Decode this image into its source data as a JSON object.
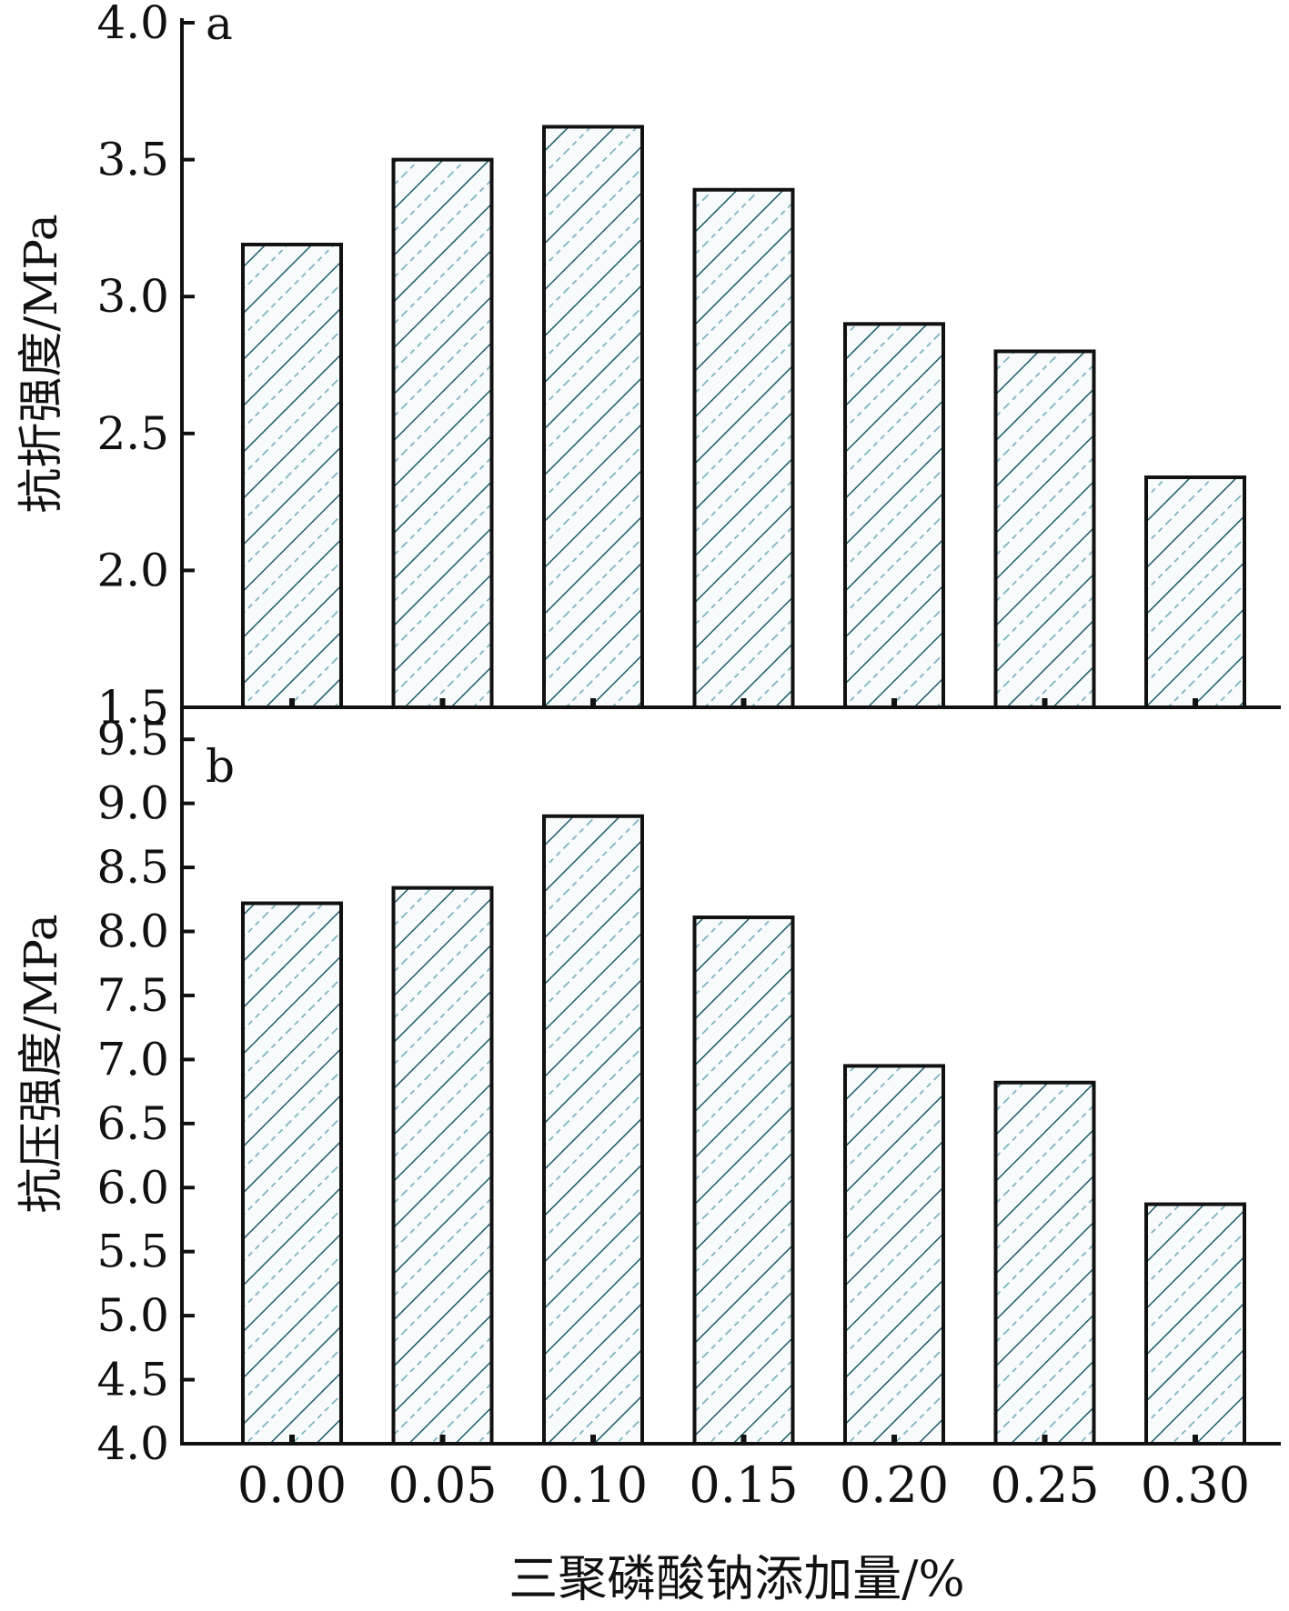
{
  "chart_data": [
    {
      "type": "bar",
      "panel_label": "a",
      "ylabel": "抗折强度/MPa",
      "ylim": [
        1.5,
        4.0
      ],
      "yticks": [
        "1.5",
        "2.0",
        "2.5",
        "3.0",
        "3.5",
        "4.0"
      ],
      "categories": [
        "0.00",
        "0.05",
        "0.10",
        "0.15",
        "0.20",
        "0.25",
        "0.30"
      ],
      "values": [
        3.19,
        3.5,
        3.62,
        3.39,
        2.9,
        2.8,
        2.34
      ]
    },
    {
      "type": "bar",
      "panel_label": "b",
      "ylabel": "抗压强度/MPa",
      "ylim": [
        4.0,
        9.75
      ],
      "yticks": [
        "4.0",
        "4.5",
        "5.0",
        "5.5",
        "6.0",
        "6.5",
        "7.0",
        "7.5",
        "8.0",
        "8.5",
        "9.0",
        "9.5"
      ],
      "categories": [
        "0.00",
        "0.05",
        "0.10",
        "0.15",
        "0.20",
        "0.25",
        "0.30"
      ],
      "values": [
        8.22,
        8.34,
        8.9,
        8.11,
        6.95,
        6.82,
        5.87
      ],
      "xlabel": "三聚磷酸钠添加量/%"
    }
  ],
  "colors": {
    "hatch_dark": "#1f5c68",
    "hatch_light": "#6aa7b4",
    "bar_fill": "#f7fbfc",
    "axis": "#111111"
  }
}
